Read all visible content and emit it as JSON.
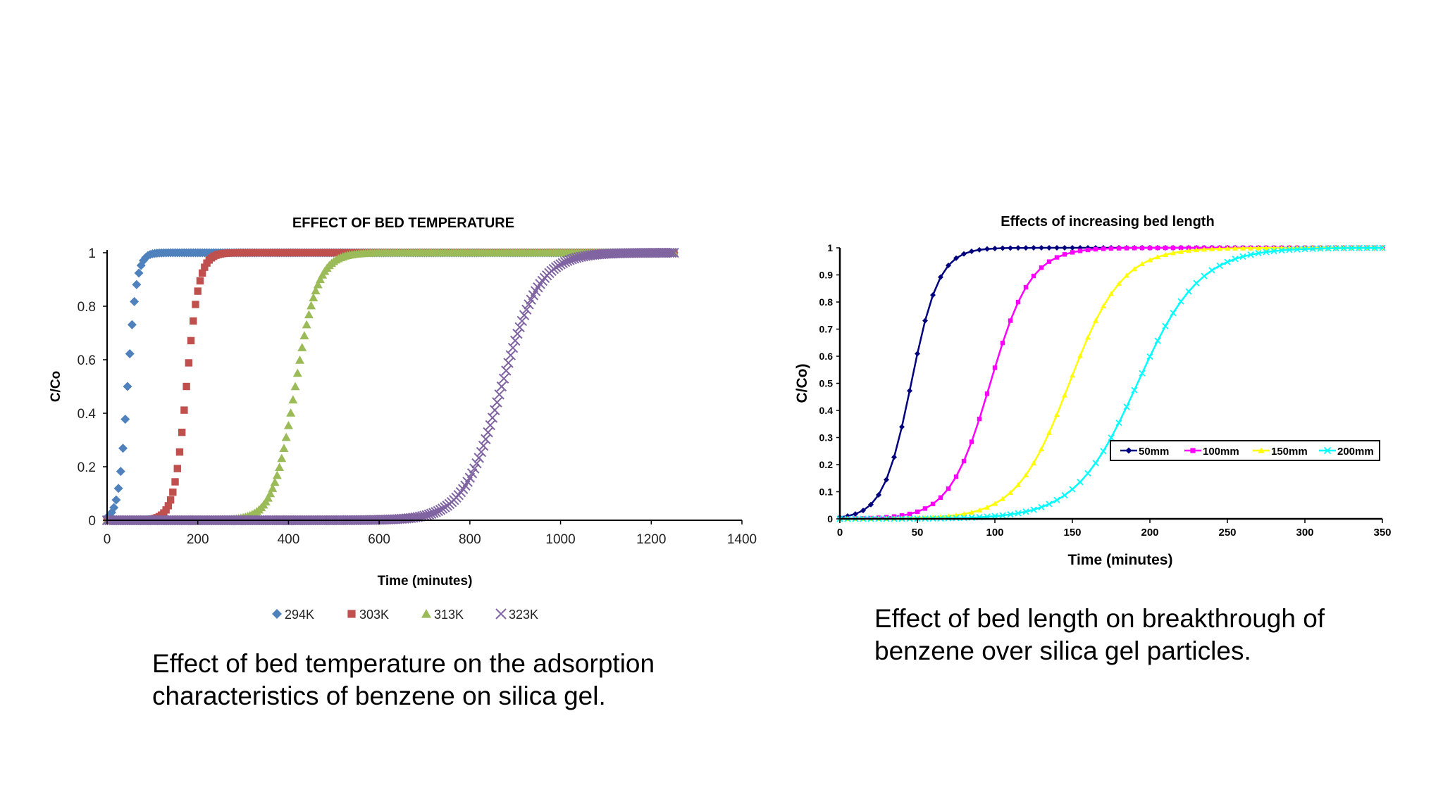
{
  "chart_data": [
    {
      "type": "scatter",
      "title": "EFFECT OF BED TEMPERATURE",
      "xlabel": "Time (minutes)",
      "ylabel": "C/Co",
      "xlim": [
        0,
        1400
      ],
      "ylim": [
        0,
        1
      ],
      "x_ticks": [
        "0",
        "200",
        "400",
        "600",
        "800",
        "1000",
        "1200",
        "1400"
      ],
      "y_ticks": [
        "0",
        "0.2",
        "0.4",
        "0.6",
        "0.8",
        "1"
      ],
      "grid": false,
      "legend_position": "bottom",
      "series": [
        {
          "name": "294K",
          "marker": "diamond",
          "color": "#4F81BD",
          "midpoint": 45,
          "spread": 10,
          "x_start": 0,
          "x_end": 1250,
          "x_step": 5
        },
        {
          "name": "303K",
          "marker": "square",
          "color": "#C0504D",
          "midpoint": 175,
          "spread": 14,
          "x_start": 0,
          "x_end": 1250,
          "x_step": 5
        },
        {
          "name": "313K",
          "marker": "triangle",
          "color": "#9BBB59",
          "midpoint": 415,
          "spread": 25,
          "x_start": 0,
          "x_end": 1250,
          "x_step": 5
        },
        {
          "name": "323K",
          "marker": "x",
          "color": "#8064A2",
          "midpoint": 870,
          "spread": 42,
          "x_start": 0,
          "x_end": 1250,
          "x_step": 5
        }
      ]
    },
    {
      "type": "line",
      "title": "Effects of increasing bed length",
      "xlabel": "Time (minutes)",
      "ylabel": "C/Co)",
      "xlim": [
        0,
        350
      ],
      "ylim": [
        0,
        1
      ],
      "x_ticks": [
        "0",
        "50",
        "100",
        "150",
        "200",
        "250",
        "300",
        "350"
      ],
      "y_ticks": [
        "0",
        "0.1",
        "0.2",
        "0.3",
        "0.4",
        "0.5",
        "0.6",
        "0.7",
        "0.8",
        "0.9",
        "1"
      ],
      "grid": false,
      "legend_position": "center-right",
      "series": [
        {
          "name": "50mm",
          "marker": "diamond",
          "color": "#00007F",
          "midpoint": 46,
          "spread": 9,
          "x_start": 0,
          "x_end": 350,
          "x_step": 5
        },
        {
          "name": "100mm",
          "marker": "square",
          "color": "#FF00FF",
          "midpoint": 97,
          "spread": 13,
          "x_start": 0,
          "x_end": 350,
          "x_step": 5
        },
        {
          "name": "150mm",
          "marker": "triangle",
          "color": "#FFFF00",
          "midpoint": 148,
          "spread": 17,
          "x_start": 0,
          "x_end": 350,
          "x_step": 5
        },
        {
          "name": "200mm",
          "marker": "x",
          "color": "#00FFFF",
          "midpoint": 192,
          "spread": 20,
          "x_start": 0,
          "x_end": 350,
          "x_step": 5
        }
      ]
    }
  ],
  "captions": {
    "left": {
      "line1": "Effect of bed temperature on the adsorption",
      "line2": "characteristics of benzene on silica gel."
    },
    "right": {
      "line1": "Effect of bed length on breakthrough of",
      "line2": "benzene over silica gel particles."
    }
  }
}
